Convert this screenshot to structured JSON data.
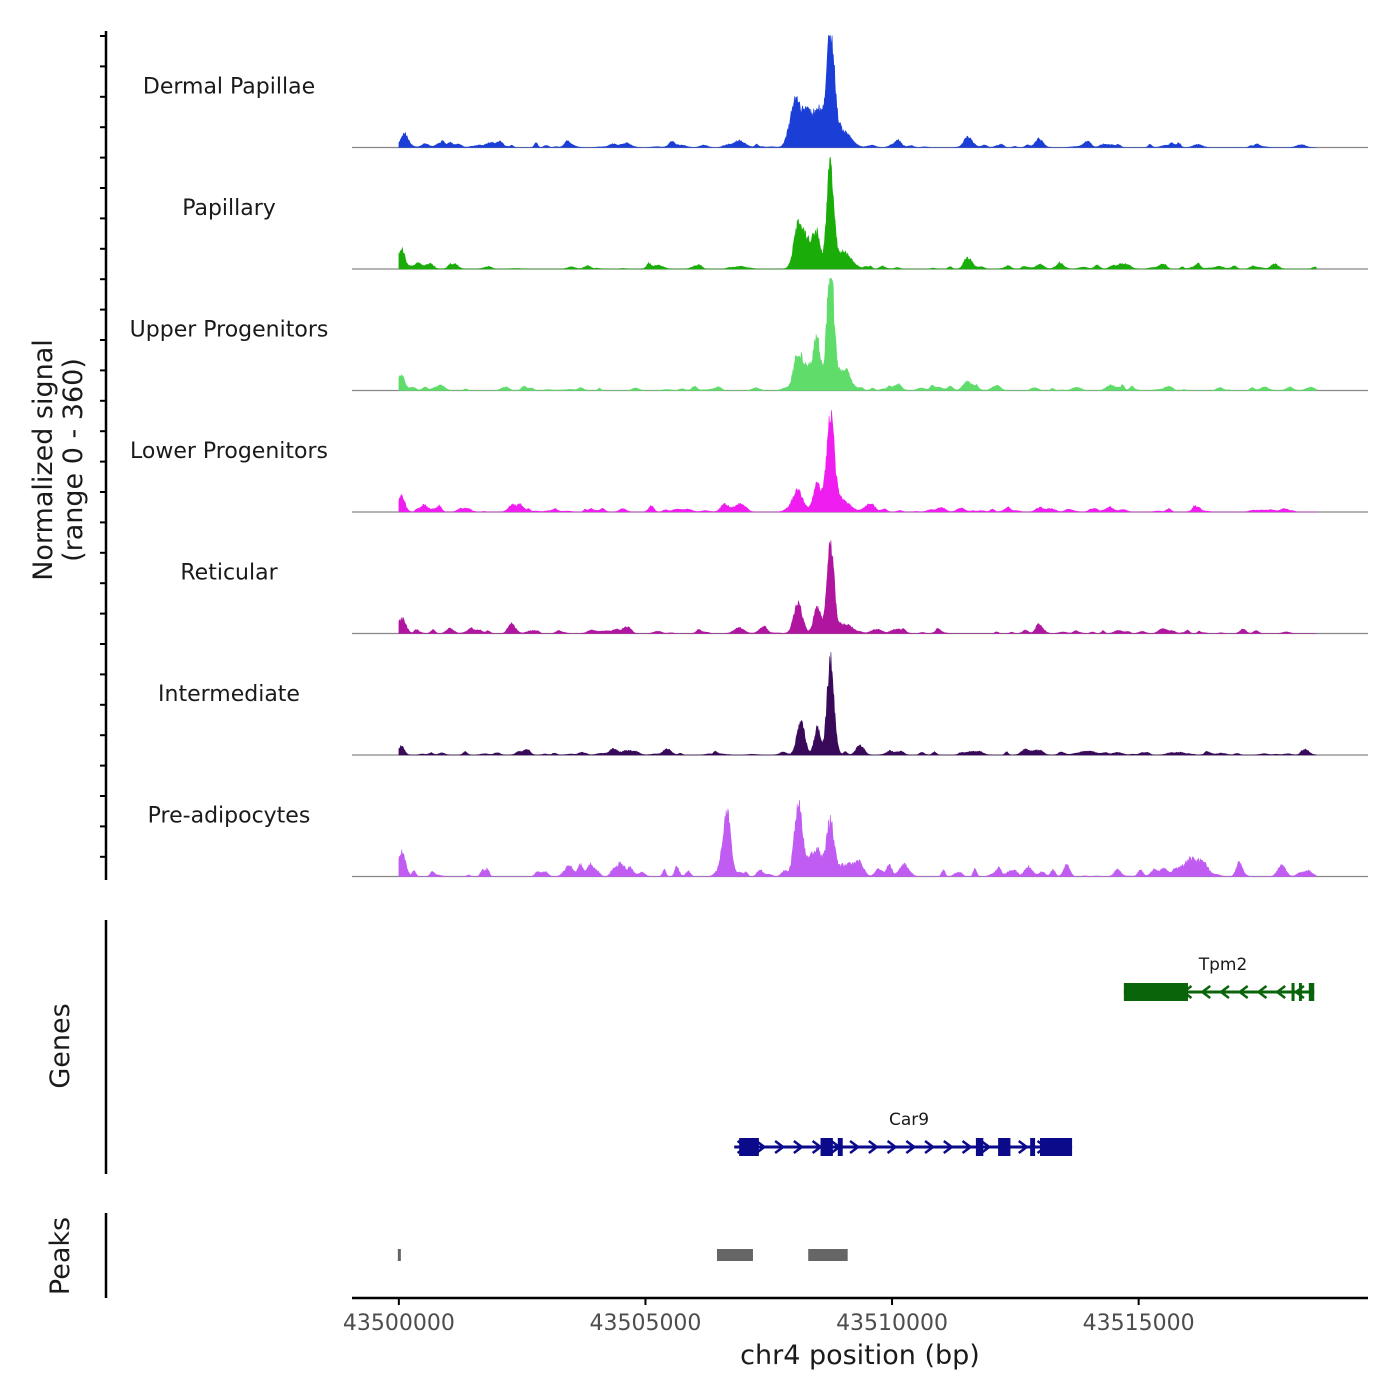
{
  "chart_data": {
    "type": "area",
    "title": "",
    "ylabel_line1": "Normalized signal",
    "ylabel_line2": "(range 0 - 360)",
    "xlabel": "chr4 position (bp)",
    "xlim": [
      43499050,
      43519650
    ],
    "x_ticks": [
      43500000,
      43505000,
      43510000,
      43515000
    ],
    "x_tick_labels": [
      "43500000",
      "43505000",
      "43510000",
      "43515000"
    ],
    "y_range": [
      0,
      360
    ],
    "tracks": [
      {
        "name": "Dermal Papillae",
        "color": "#1a3ed6",
        "peaks": [
          [
            43500100,
            0.1,
            70
          ],
          [
            43506900,
            0.06,
            120
          ],
          [
            43508050,
            0.4,
            110
          ],
          [
            43508300,
            0.28,
            90
          ],
          [
            43508500,
            0.3,
            80
          ],
          [
            43508750,
            1.0,
            80
          ],
          [
            43509000,
            0.14,
            160
          ],
          [
            43511550,
            0.06,
            80
          ],
          [
            43513000,
            0.05,
            80
          ]
        ]
      },
      {
        "name": "Papillary",
        "color": "#1aad0a",
        "peaks": [
          [
            43500050,
            0.14,
            70
          ],
          [
            43508100,
            0.38,
            90
          ],
          [
            43508300,
            0.22,
            90
          ],
          [
            43508480,
            0.28,
            70
          ],
          [
            43508750,
            0.92,
            70
          ],
          [
            43509000,
            0.12,
            150
          ],
          [
            43511550,
            0.05,
            80
          ],
          [
            43513000,
            0.04,
            80
          ]
        ]
      },
      {
        "name": "Upper Progenitors",
        "color": "#5fdc6a",
        "peaks": [
          [
            43500050,
            0.12,
            70
          ],
          [
            43508100,
            0.32,
            90
          ],
          [
            43508300,
            0.18,
            90
          ],
          [
            43508480,
            0.42,
            70
          ],
          [
            43508750,
            1.0,
            70
          ],
          [
            43509000,
            0.16,
            150
          ],
          [
            43511550,
            0.05,
            80
          ]
        ]
      },
      {
        "name": "Lower Progenitors",
        "color": "#f01df0",
        "peaks": [
          [
            43500050,
            0.14,
            70
          ],
          [
            43502300,
            0.06,
            80
          ],
          [
            43506900,
            0.06,
            100
          ],
          [
            43508100,
            0.16,
            100
          ],
          [
            43508480,
            0.24,
            70
          ],
          [
            43508750,
            0.8,
            80
          ],
          [
            43509000,
            0.1,
            150
          ],
          [
            43511000,
            0.04,
            80
          ],
          [
            43513000,
            0.04,
            80
          ]
        ]
      },
      {
        "name": "Reticular",
        "color": "#b0159f",
        "peaks": [
          [
            43500050,
            0.12,
            70
          ],
          [
            43502300,
            0.06,
            80
          ],
          [
            43506900,
            0.05,
            100
          ],
          [
            43508100,
            0.22,
            90
          ],
          [
            43508480,
            0.22,
            70
          ],
          [
            43508750,
            0.78,
            70
          ],
          [
            43509000,
            0.08,
            150
          ],
          [
            43513000,
            0.06,
            80
          ]
        ]
      },
      {
        "name": "Intermediate",
        "color": "#3a0a5a",
        "peaks": [
          [
            43500050,
            0.08,
            60
          ],
          [
            43508150,
            0.28,
            80
          ],
          [
            43508480,
            0.22,
            60
          ],
          [
            43508750,
            0.8,
            70
          ],
          [
            43509350,
            0.06,
            80
          ],
          [
            43512700,
            0.05,
            80
          ]
        ]
      },
      {
        "name": "Pre-adipocytes",
        "color": "#c05cf2",
        "peaks": [
          [
            43500050,
            0.2,
            80
          ],
          [
            43506650,
            0.56,
            80
          ],
          [
            43508100,
            0.58,
            80
          ],
          [
            43508400,
            0.2,
            130
          ],
          [
            43508750,
            0.44,
            70
          ],
          [
            43509100,
            0.1,
            120
          ],
          [
            43516200,
            0.14,
            150
          ],
          [
            43517900,
            0.1,
            80
          ]
        ]
      }
    ],
    "genes": [
      {
        "name": "Car9",
        "strand": "+",
        "color": "#0a0a8a",
        "start": 43506800,
        "end": 43513650,
        "exons": [
          [
            43506900,
            43507300
          ],
          [
            43508550,
            43508800
          ],
          [
            43508900,
            43509000
          ],
          [
            43511700,
            43511850
          ],
          [
            43512150,
            43512400
          ],
          [
            43512800,
            43512900
          ],
          [
            43513000,
            43513650
          ]
        ]
      },
      {
        "name": "Tpm2",
        "strand": "-",
        "color": "#0a640a",
        "start": 43514700,
        "end": 43518560,
        "exons": [
          [
            43514700,
            43516000
          ],
          [
            43518100,
            43518150
          ],
          [
            43518250,
            43518300
          ],
          [
            43518450,
            43518560
          ]
        ]
      }
    ],
    "gene_track_label": "Genes",
    "peaks_track_label": "Peaks",
    "peak_regions": [
      [
        43499980,
        43500030
      ],
      [
        43506450,
        43507180
      ],
      [
        43508300,
        43509100
      ]
    ]
  }
}
